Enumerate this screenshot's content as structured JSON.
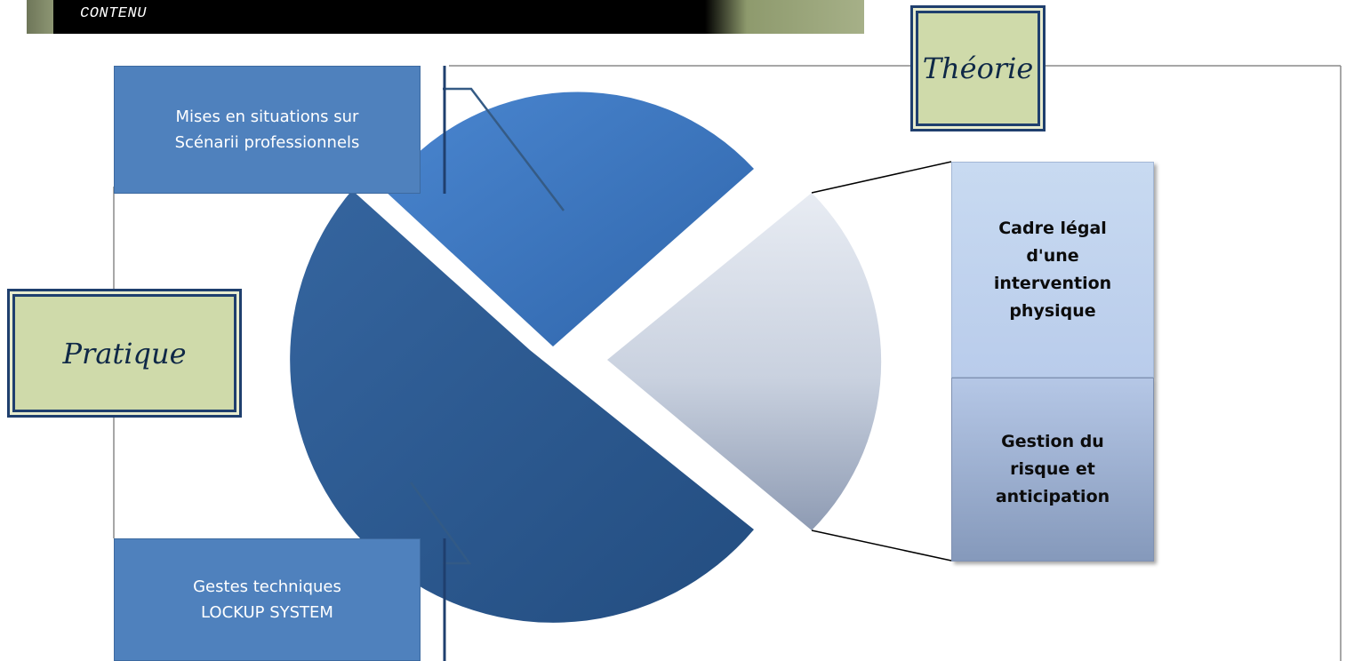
{
  "header": {
    "title": "CONTENU"
  },
  "sections": {
    "theory": "Théorie",
    "practice": "Pratique"
  },
  "segments": [
    {
      "label": "Mises en situations sur\nScénarii professionnels",
      "color": "#3f79c2"
    },
    {
      "label": "Gestes techniques\nLOCKUP SYSTEM",
      "color": "#2d5c97"
    },
    {
      "color": "#d6dde9"
    }
  ],
  "theory_items": [
    {
      "label": "Cadre légal\nd'une\nintervention\nphysique"
    },
    {
      "label": "Gestion du\nrisque et\nanticipation"
    }
  ],
  "colors": {
    "frame_fill": "#cfdaaa",
    "frame_border": "#1f3f6e",
    "label_fill": "#4f81bd"
  }
}
